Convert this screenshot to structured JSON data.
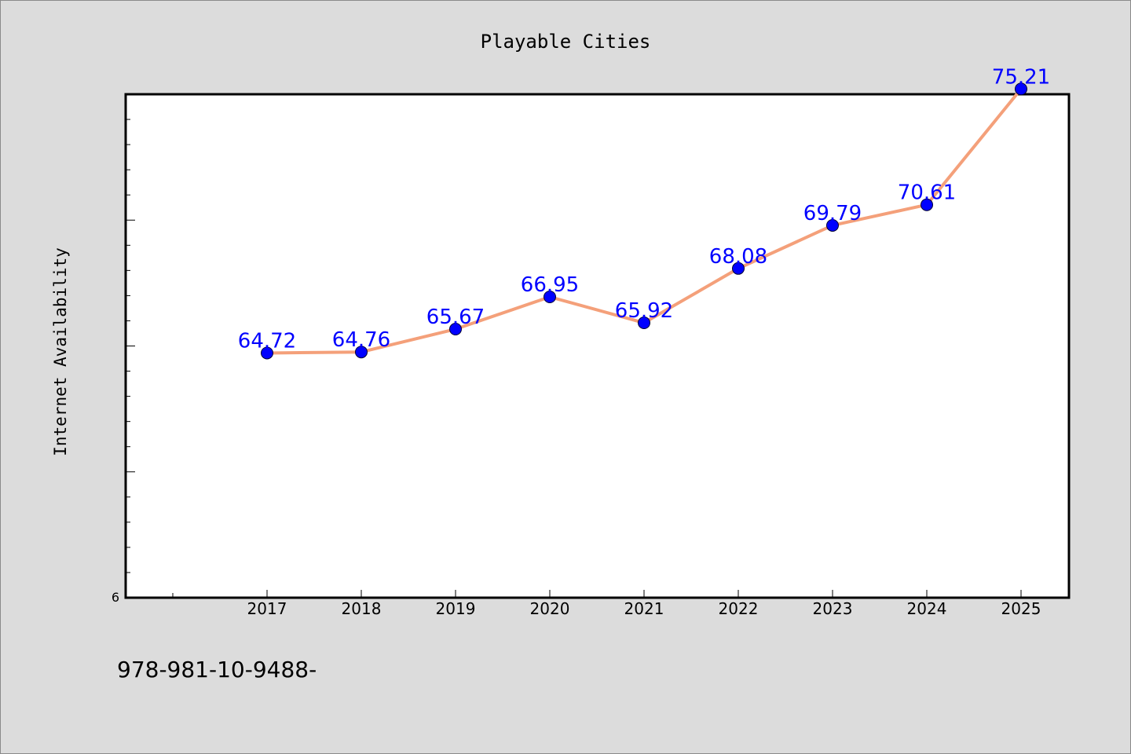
{
  "chart_data": {
    "type": "line",
    "title": "Playable Cities",
    "xlabel": "",
    "ylabel": "Internet Availability",
    "categories": [
      "2017",
      "2018",
      "2019",
      "2020",
      "2021",
      "2022",
      "2023",
      "2024",
      "2025"
    ],
    "series": [
      {
        "values": [
          64.72,
          64.76,
          65.67,
          66.95,
          65.92,
          68.08,
          69.79,
          70.61,
          75.21
        ],
        "labels": [
          "64.72",
          "64.76",
          "65.67",
          "66.95",
          "65.92",
          "68.08",
          "69.79",
          "70.61",
          "75.21"
        ],
        "line_color": "#f4a07a",
        "marker_color": "#0000ff",
        "label_color": "#0000ff"
      }
    ],
    "ylim": [
      55,
      75
    ],
    "y_tick_labels": [
      "6"
    ],
    "grid": false,
    "legend": "none"
  },
  "footer_text": "978-981-10-9488-",
  "colors": {
    "background": "#dcdcdc",
    "plot_background": "#ffffff",
    "axis": "#000000"
  }
}
